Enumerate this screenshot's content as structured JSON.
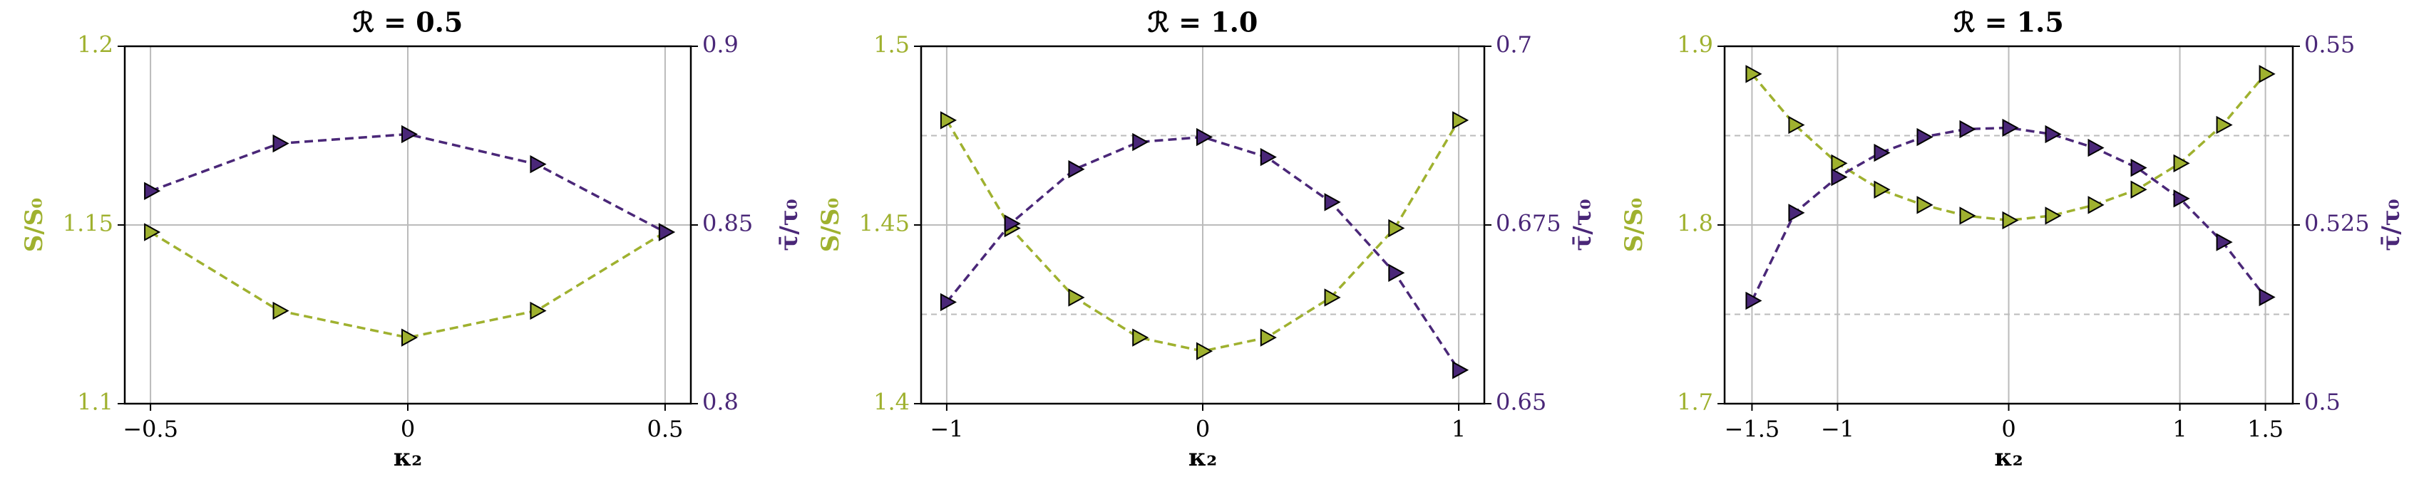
{
  "chart_data": [
    {
      "type": "line",
      "title": "ℛ = 0.5",
      "xlabel": "κ₂",
      "ylabel": "S/S₀",
      "y2label": "τ̄/τ₀",
      "x": [
        -0.5,
        -0.25,
        0,
        0.25,
        0.5
      ],
      "series": [
        {
          "color": "#9fb12f",
          "values": [
            1.148,
            1.126,
            1.1185,
            1.126,
            1.148
          ]
        },
        {
          "color": "#4a2778",
          "axis": "y2",
          "values": [
            0.8595,
            0.8728,
            0.8754,
            0.867,
            0.848
          ]
        }
      ],
      "xlim": [
        -0.55,
        0.55
      ],
      "xticks": [
        {
          "value": -0.5,
          "label": "−0.5"
        },
        0,
        0.5
      ],
      "ylim": [
        1.1,
        1.2
      ],
      "yticks": [
        1.1,
        1.15,
        1.2
      ],
      "y2lim": [
        0.8,
        0.9
      ],
      "y2ticks": [
        0.8,
        0.85,
        0.9
      ],
      "grid": true,
      "y_minor_grid": []
    },
    {
      "type": "line",
      "title": "ℛ = 1.0",
      "xlabel": "κ₂",
      "ylabel": "S/S₀",
      "y2label": "τ̄/τ₀",
      "x": [
        -1,
        -0.75,
        -0.5,
        -0.25,
        0,
        0.25,
        0.5,
        0.75,
        1
      ],
      "series": [
        {
          "color": "#9fb12f",
          "values": [
            1.4793,
            1.4491,
            1.4297,
            1.4185,
            1.4147,
            1.4185,
            1.4297,
            1.4491,
            1.4793
          ]
        },
        {
          "color": "#4a2778",
          "axis": "y2",
          "values": [
            0.6642,
            0.6752,
            0.6828,
            0.6866,
            0.6873,
            0.6845,
            0.6782,
            0.6683,
            0.6547
          ]
        }
      ],
      "xlim": [
        -1.1,
        1.1
      ],
      "xticks": [
        {
          "value": -1,
          "label": "−1"
        },
        0,
        1
      ],
      "ylim": [
        1.4,
        1.5
      ],
      "yticks": [
        1.4,
        1.45,
        1.5
      ],
      "y2lim": [
        0.65,
        0.7
      ],
      "y2ticks": [
        0.65,
        0.675,
        0.7
      ],
      "grid": true,
      "y_minor_grid": [
        1.425,
        1.475
      ]
    },
    {
      "type": "line",
      "title": "ℛ = 1.5",
      "xlabel": "κ₂",
      "ylabel": "S/S₀",
      "y2label": "τ̄/τ₀",
      "x": [
        -1.5,
        -1.25,
        -1,
        -0.75,
        -0.5,
        -0.25,
        0,
        0.25,
        0.5,
        0.75,
        1,
        1.25,
        1.5
      ],
      "series": [
        {
          "color": "#9fb12f",
          "values": [
            1.8845,
            1.856,
            1.8345,
            1.8198,
            1.8112,
            1.8052,
            1.8026,
            1.8052,
            1.8112,
            1.8198,
            1.8345,
            1.856,
            1.8845
          ]
        },
        {
          "color": "#4a2778",
          "axis": "y2",
          "values": [
            0.5144,
            0.5267,
            0.5317,
            0.5351,
            0.5373,
            0.5384,
            0.5386,
            0.5377,
            0.5358,
            0.533,
            0.5287,
            0.5226,
            0.5149
          ]
        }
      ],
      "xlim": [
        -1.66,
        1.66
      ],
      "xticks": [
        {
          "value": -1.5,
          "label": "−1.5"
        },
        {
          "value": -1,
          "label": "−1"
        },
        0,
        1,
        1.5
      ],
      "ylim": [
        1.7,
        1.9
      ],
      "yticks": [
        1.7,
        1.8,
        1.9
      ],
      "y2lim": [
        0.5,
        0.55
      ],
      "y2ticks": [
        0.5,
        0.525,
        0.55
      ],
      "grid": true,
      "y_minor_grid": [
        1.75,
        1.85
      ]
    }
  ]
}
